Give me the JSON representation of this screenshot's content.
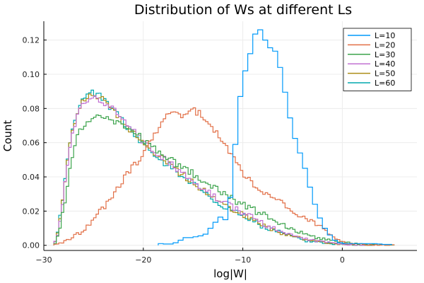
{
  "chart_data": {
    "type": "histogram",
    "title": "Distribution of Ws at different Ls",
    "xlabel": "log|W|",
    "ylabel": "Count",
    "xlim": [
      -30,
      7.5
    ],
    "ylim": [
      -0.003,
      0.131
    ],
    "xticks": [
      -30,
      -20,
      -10,
      0
    ],
    "xtick_labels": [
      "−30",
      "−20",
      "−10",
      "0"
    ],
    "yticks": [
      0.0,
      0.02,
      0.04,
      0.06,
      0.08,
      0.1,
      0.12
    ],
    "ytick_labels": [
      "0.00",
      "0.02",
      "0.04",
      "0.06",
      "0.08",
      "0.10",
      "0.12"
    ],
    "grid": true,
    "legend_position": "top-right",
    "series": [
      {
        "name": "L=10",
        "color": "#009AFA",
        "bin_width": 0.5,
        "points": [
          [
            -18.5,
            0.001
          ],
          [
            -18,
            0.001
          ],
          [
            -17.5,
            0.0005
          ],
          [
            -17,
            0.001
          ],
          [
            -16.5,
            0.002
          ],
          [
            -16,
            0.004
          ],
          [
            -15.5,
            0.005
          ],
          [
            -15,
            0.004
          ],
          [
            -14.5,
            0.006
          ],
          [
            -14,
            0.005
          ],
          [
            -13.5,
            0.008
          ],
          [
            -13,
            0.012
          ],
          [
            -12.5,
            0.015
          ],
          [
            -12,
            0.018
          ],
          [
            -11.5,
            0.012
          ],
          [
            -11,
            0.044
          ],
          [
            -10.5,
            0.074
          ],
          [
            -10,
            0.1
          ],
          [
            -9.5,
            0.104
          ],
          [
            -9,
            0.12
          ],
          [
            -8.5,
            0.127
          ],
          [
            -8,
            0.125
          ],
          [
            -7.5,
            0.115
          ],
          [
            -7,
            0.116
          ],
          [
            -6.5,
            0.111
          ],
          [
            -6,
            0.097
          ],
          [
            -5.5,
            0.082
          ],
          [
            -5,
            0.067
          ],
          [
            -4.5,
            0.058
          ],
          [
            -4,
            0.05
          ],
          [
            -3.5,
            0.04
          ],
          [
            -3,
            0.028
          ],
          [
            -2.5,
            0.02
          ],
          [
            -2,
            0.012
          ],
          [
            -1.5,
            0.008
          ],
          [
            -1,
            0.004
          ],
          [
            -0.5,
            0.002
          ],
          [
            0,
            0.001
          ],
          [
            0.5,
            0.001
          ],
          [
            1,
            0.001
          ],
          [
            1.5,
            0.001
          ],
          [
            2,
            0.001
          ],
          [
            2.5,
            0.001
          ],
          [
            3,
            0.001
          ],
          [
            3.5,
            0.001
          ],
          [
            4,
            0.0005
          ],
          [
            4.5,
            0.0005
          ]
        ]
      },
      {
        "name": "L=20",
        "color": "#E26F46",
        "bin_width": 0.25,
        "points": [
          [
            -29,
            0.0
          ],
          [
            -28,
            0.002
          ],
          [
            -27,
            0.005
          ],
          [
            -26,
            0.009
          ],
          [
            -25,
            0.015
          ],
          [
            -24,
            0.022
          ],
          [
            -23,
            0.03
          ],
          [
            -22,
            0.039
          ],
          [
            -21,
            0.046
          ],
          [
            -20,
            0.054
          ],
          [
            -19,
            0.064
          ],
          [
            -18,
            0.074
          ],
          [
            -17,
            0.079
          ],
          [
            -16,
            0.076
          ],
          [
            -15,
            0.079
          ],
          [
            -14,
            0.076
          ],
          [
            -13,
            0.068
          ],
          [
            -12,
            0.06
          ],
          [
            -11,
            0.052
          ],
          [
            -10,
            0.042
          ],
          [
            -9,
            0.036
          ],
          [
            -8,
            0.03
          ],
          [
            -7,
            0.027
          ],
          [
            -6,
            0.024
          ],
          [
            -5,
            0.021
          ],
          [
            -4,
            0.017
          ],
          [
            -3,
            0.013
          ],
          [
            -2,
            0.01
          ],
          [
            -1,
            0.005
          ],
          [
            0,
            0.002
          ],
          [
            1,
            0.0008
          ],
          [
            2,
            0.0005
          ],
          [
            3,
            0.0002
          ],
          [
            4,
            0.0001
          ],
          [
            5,
            0.0001
          ]
        ]
      },
      {
        "name": "L=30",
        "color": "#3DA44D",
        "bin_width": 0.25,
        "points": [
          [
            -29,
            0.0
          ],
          [
            -28.5,
            0.006
          ],
          [
            -28,
            0.022
          ],
          [
            -27.5,
            0.04
          ],
          [
            -27,
            0.057
          ],
          [
            -26.5,
            0.066
          ],
          [
            -26,
            0.071
          ],
          [
            -25.5,
            0.073
          ],
          [
            -25,
            0.074
          ],
          [
            -24.5,
            0.075
          ],
          [
            -24,
            0.075
          ],
          [
            -23,
            0.073
          ],
          [
            -22,
            0.07
          ],
          [
            -21,
            0.066
          ],
          [
            -20,
            0.062
          ],
          [
            -19,
            0.057
          ],
          [
            -18,
            0.053
          ],
          [
            -17,
            0.049
          ],
          [
            -16,
            0.046
          ],
          [
            -15,
            0.042
          ],
          [
            -14,
            0.038
          ],
          [
            -13,
            0.034
          ],
          [
            -12,
            0.03
          ],
          [
            -11,
            0.027
          ],
          [
            -10,
            0.024
          ],
          [
            -9,
            0.021
          ],
          [
            -8,
            0.018
          ],
          [
            -7,
            0.015
          ],
          [
            -6,
            0.012
          ],
          [
            -5,
            0.009
          ],
          [
            -4,
            0.007
          ],
          [
            -3,
            0.005
          ],
          [
            -2,
            0.004
          ],
          [
            -1,
            0.003
          ],
          [
            0,
            0.002
          ],
          [
            1,
            0.001
          ],
          [
            2,
            0.0006
          ],
          [
            3,
            0.0003
          ],
          [
            4,
            0.0002
          ],
          [
            5,
            0.0001
          ]
        ]
      },
      {
        "name": "L=40",
        "color": "#C271D2",
        "bin_width": 0.25,
        "points": [
          [
            -29,
            0.0
          ],
          [
            -28.5,
            0.008
          ],
          [
            -28,
            0.03
          ],
          [
            -27.5,
            0.052
          ],
          [
            -27,
            0.068
          ],
          [
            -26.5,
            0.078
          ],
          [
            -26,
            0.083
          ],
          [
            -25.5,
            0.086
          ],
          [
            -25,
            0.087
          ],
          [
            -24.5,
            0.086
          ],
          [
            -24,
            0.084
          ],
          [
            -23,
            0.079
          ],
          [
            -22,
            0.073
          ],
          [
            -21,
            0.067
          ],
          [
            -20,
            0.061
          ],
          [
            -19,
            0.056
          ],
          [
            -18,
            0.051
          ],
          [
            -17,
            0.047
          ],
          [
            -16,
            0.042
          ],
          [
            -15,
            0.038
          ],
          [
            -14,
            0.033
          ],
          [
            -13,
            0.029
          ],
          [
            -12,
            0.025
          ],
          [
            -11,
            0.022
          ],
          [
            -10,
            0.019
          ],
          [
            -9,
            0.016
          ],
          [
            -8,
            0.013
          ],
          [
            -7,
            0.01
          ],
          [
            -6,
            0.008
          ],
          [
            -5,
            0.006
          ],
          [
            -4,
            0.004
          ],
          [
            -3,
            0.003
          ],
          [
            -2,
            0.002
          ],
          [
            -1,
            0.0012
          ],
          [
            0,
            0.0007
          ],
          [
            1,
            0.0004
          ],
          [
            2,
            0.0002
          ],
          [
            3,
            0.0001
          ]
        ]
      },
      {
        "name": "L=50",
        "color": "#AC8D18",
        "bin_width": 0.25,
        "points": [
          [
            -29,
            0.0
          ],
          [
            -28.5,
            0.009
          ],
          [
            -28,
            0.032
          ],
          [
            -27.5,
            0.055
          ],
          [
            -27,
            0.07
          ],
          [
            -26.5,
            0.08
          ],
          [
            -26,
            0.085
          ],
          [
            -25.5,
            0.087
          ],
          [
            -25,
            0.088
          ],
          [
            -24.5,
            0.087
          ],
          [
            -24,
            0.085
          ],
          [
            -23,
            0.079
          ],
          [
            -22,
            0.072
          ],
          [
            -21,
            0.066
          ],
          [
            -20,
            0.06
          ],
          [
            -19,
            0.055
          ],
          [
            -18,
            0.05
          ],
          [
            -17,
            0.046
          ],
          [
            -16,
            0.041
          ],
          [
            -15,
            0.037
          ],
          [
            -14,
            0.032
          ],
          [
            -13,
            0.028
          ],
          [
            -12,
            0.024
          ],
          [
            -11,
            0.021
          ],
          [
            -10,
            0.018
          ],
          [
            -9,
            0.015
          ],
          [
            -8,
            0.012
          ],
          [
            -7,
            0.009
          ],
          [
            -6,
            0.007
          ],
          [
            -5,
            0.005
          ],
          [
            -4,
            0.004
          ],
          [
            -3,
            0.003
          ],
          [
            -2,
            0.002
          ],
          [
            -1,
            0.0011
          ],
          [
            0,
            0.0006
          ],
          [
            1,
            0.0003
          ],
          [
            2,
            0.0002
          ],
          [
            3,
            0.0001
          ]
        ]
      },
      {
        "name": "L=60",
        "color": "#00A9AD",
        "bin_width": 0.25,
        "points": [
          [
            -29,
            0.0
          ],
          [
            -28.5,
            0.01
          ],
          [
            -28,
            0.034
          ],
          [
            -27.5,
            0.057
          ],
          [
            -27,
            0.072
          ],
          [
            -26.5,
            0.081
          ],
          [
            -26,
            0.087
          ],
          [
            -25.5,
            0.089
          ],
          [
            -25,
            0.089
          ],
          [
            -24.5,
            0.088
          ],
          [
            -24,
            0.085
          ],
          [
            -23,
            0.079
          ],
          [
            -22,
            0.072
          ],
          [
            -21,
            0.065
          ],
          [
            -20,
            0.059
          ],
          [
            -19,
            0.054
          ],
          [
            -18,
            0.049
          ],
          [
            -17,
            0.045
          ],
          [
            -16,
            0.04
          ],
          [
            -15,
            0.036
          ],
          [
            -14,
            0.031
          ],
          [
            -13,
            0.027
          ],
          [
            -12,
            0.023
          ],
          [
            -11,
            0.02
          ],
          [
            -10,
            0.017
          ],
          [
            -9,
            0.014
          ],
          [
            -8,
            0.011
          ],
          [
            -7,
            0.009
          ],
          [
            -6,
            0.007
          ],
          [
            -5,
            0.005
          ],
          [
            -4,
            0.003
          ],
          [
            -3,
            0.002
          ],
          [
            -2,
            0.0015
          ],
          [
            -1,
            0.001
          ],
          [
            0,
            0.0005
          ],
          [
            1,
            0.0003
          ],
          [
            2,
            0.0002
          ],
          [
            3,
            0.0001
          ]
        ]
      }
    ]
  }
}
